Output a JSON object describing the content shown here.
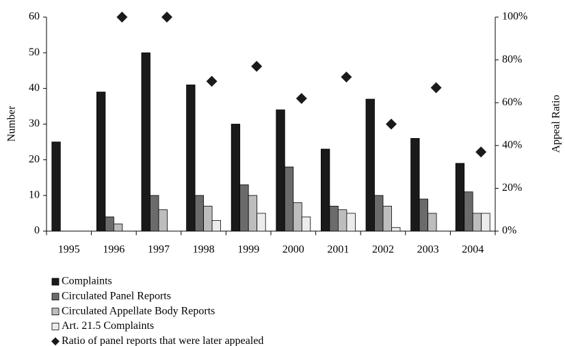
{
  "chart_data": {
    "type": "bar",
    "categories": [
      "1995",
      "1996",
      "1997",
      "1998",
      "1999",
      "2000",
      "2001",
      "2002",
      "2003",
      "2004"
    ],
    "ylabel": "Number",
    "y2label": "Appeal Ratio",
    "ylim": [
      0,
      60
    ],
    "yticks": [
      0,
      10,
      20,
      30,
      40,
      50,
      60
    ],
    "y2lim": [
      0,
      100
    ],
    "y2ticks": [
      {
        "value": 0,
        "label": "0%"
      },
      {
        "value": 20,
        "label": "20%"
      },
      {
        "value": 40,
        "label": "40%"
      },
      {
        "value": 60,
        "label": "60%"
      },
      {
        "value": 80,
        "label": "80%"
      },
      {
        "value": 100,
        "label": "100%"
      }
    ],
    "grid": false,
    "legend": "bottom-left",
    "series": [
      {
        "name": "Complaints",
        "color": "#1a1a1a",
        "values": [
          25,
          39,
          50,
          41,
          30,
          34,
          23,
          37,
          26,
          19
        ]
      },
      {
        "name": "Circulated Panel Reports",
        "color": "#6b6b6b",
        "values": [
          null,
          4,
          10,
          10,
          13,
          18,
          7,
          10,
          9,
          11
        ]
      },
      {
        "name": "Circulated Appellate Body Reports",
        "color": "#bdbdbd",
        "values": [
          null,
          2,
          6,
          7,
          10,
          8,
          6,
          7,
          5,
          5
        ]
      },
      {
        "name": "Art. 21.5 Complaints",
        "color": "#ececec",
        "values": [
          null,
          null,
          null,
          3,
          5,
          4,
          5,
          1,
          null,
          5
        ]
      },
      {
        "name": "Ratio of panel reports that were later appealed",
        "color": "#1a1a1a",
        "type": "scatter",
        "marker": "diamond",
        "axis": "y2",
        "values": [
          null,
          100,
          100,
          70,
          77,
          62,
          72,
          50,
          67,
          37
        ]
      }
    ]
  }
}
